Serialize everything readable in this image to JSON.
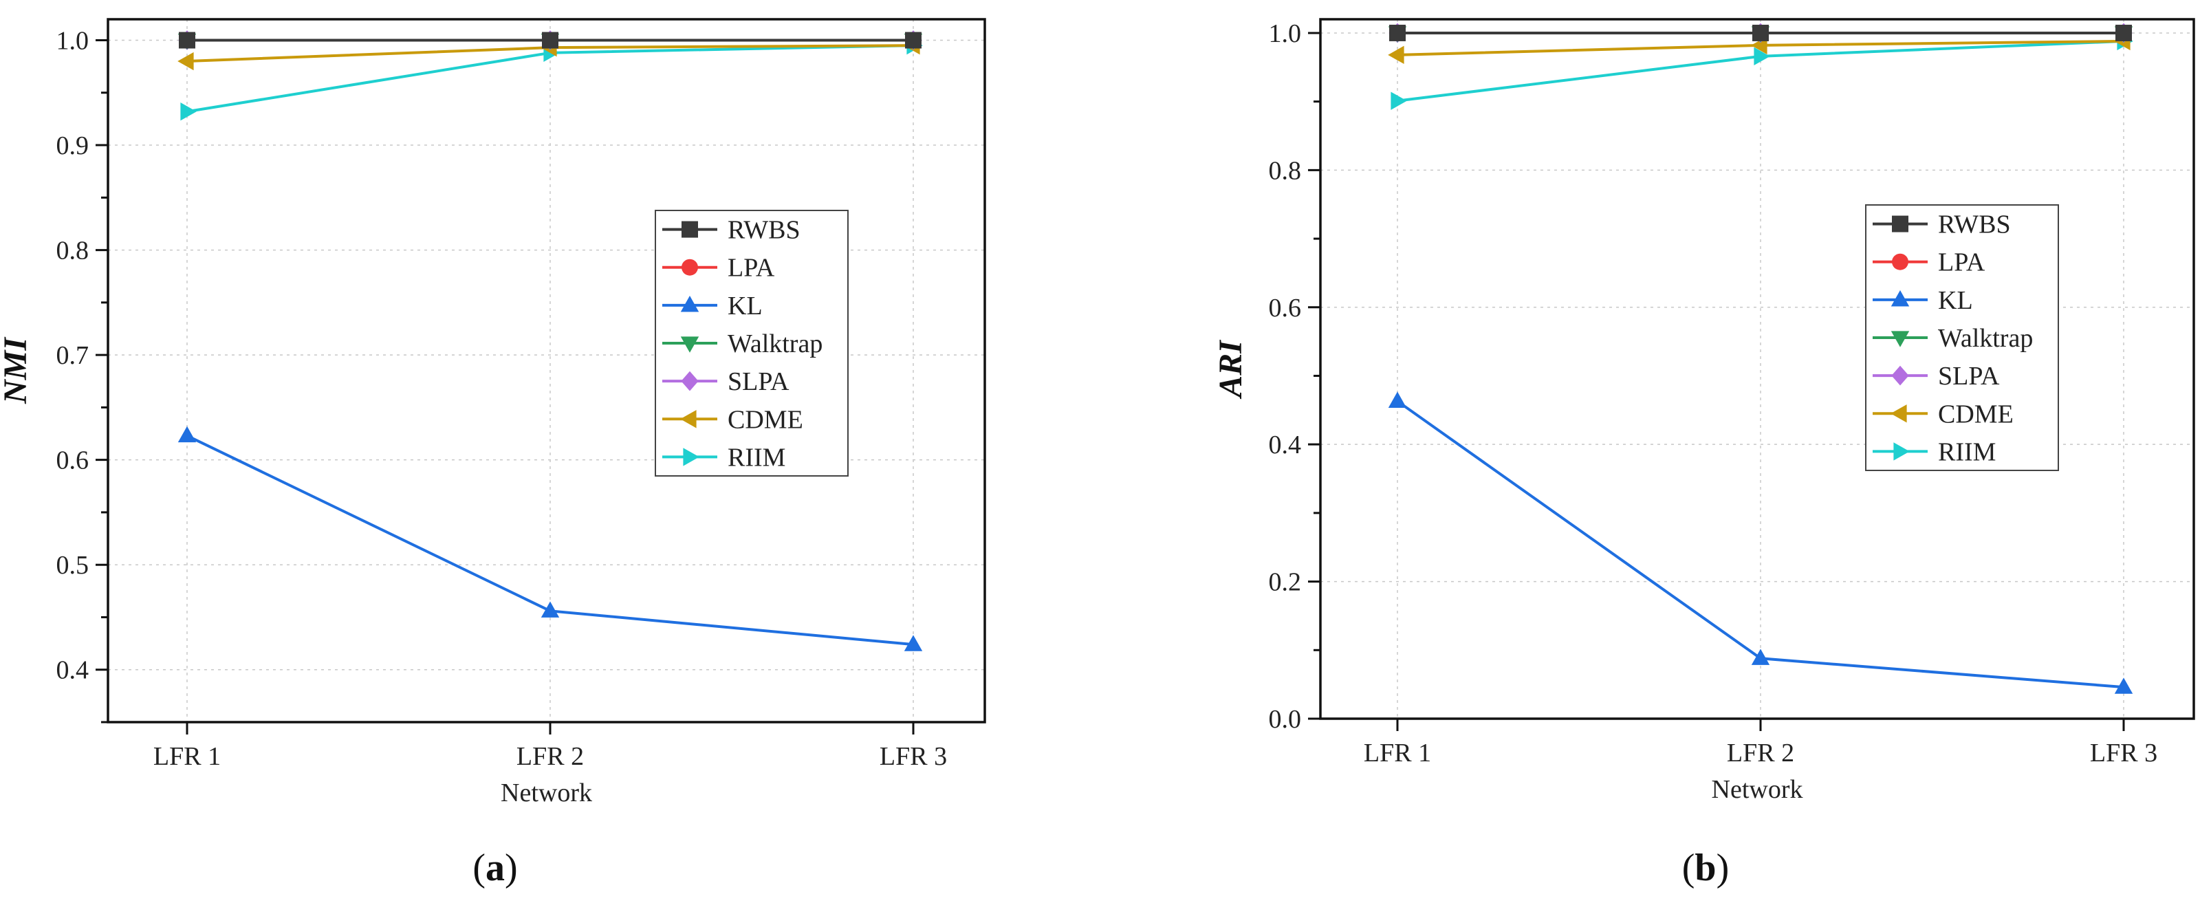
{
  "chart_data": [
    {
      "type": "line",
      "panel": "a",
      "categories": [
        "LFR 1",
        "LFR 2",
        "LFR 3"
      ],
      "xlabel": "Network",
      "ylabel": "NMI",
      "ylim": [
        0.35,
        1.02
      ],
      "yticks": [
        0.4,
        0.5,
        0.6,
        0.7,
        0.8,
        0.9,
        1.0
      ],
      "ytick_labels": [
        "0.4",
        "0.5",
        "0.6",
        "0.7",
        "0.8",
        "0.9",
        "1.0"
      ],
      "grid": true,
      "legend_position": "center-right",
      "series": [
        {
          "name": "RWBS",
          "values": [
            1.0,
            1.0,
            1.0
          ],
          "color": "#3a3a3a",
          "marker": "square"
        },
        {
          "name": "LPA",
          "values": [
            1.0,
            1.0,
            1.0
          ],
          "color": "#f03a3a",
          "marker": "circle"
        },
        {
          "name": "KL",
          "values": [
            0.623,
            0.456,
            0.424
          ],
          "color": "#1f6fe0",
          "marker": "triangle-up"
        },
        {
          "name": "Walktrap",
          "values": [
            1.0,
            1.0,
            1.0
          ],
          "color": "#2ca05a",
          "marker": "triangle-down"
        },
        {
          "name": "SLPA",
          "values": [
            1.0,
            1.0,
            1.0
          ],
          "color": "#b36ee0",
          "marker": "diamond"
        },
        {
          "name": "CDME",
          "values": [
            0.98,
            0.993,
            0.995
          ],
          "color": "#c99a0c",
          "marker": "triangle-left"
        },
        {
          "name": "RIIM",
          "values": [
            0.932,
            0.988,
            0.995
          ],
          "color": "#1ecfcf",
          "marker": "triangle-right"
        }
      ]
    },
    {
      "type": "line",
      "panel": "b",
      "categories": [
        "LFR 1",
        "LFR 2",
        "LFR 3"
      ],
      "xlabel": "Network",
      "ylabel": "ARI",
      "ylim": [
        0.0,
        1.02
      ],
      "yticks": [
        0.0,
        0.2,
        0.4,
        0.6,
        0.8,
        1.0
      ],
      "ytick_labels": [
        "0.0",
        "0.2",
        "0.4",
        "0.6",
        "0.8",
        "1.0"
      ],
      "grid": true,
      "legend_position": "center-right",
      "series": [
        {
          "name": "RWBS",
          "values": [
            1.0,
            1.0,
            1.0
          ],
          "color": "#3a3a3a",
          "marker": "square"
        },
        {
          "name": "LPA",
          "values": [
            1.0,
            1.0,
            1.0
          ],
          "color": "#f03a3a",
          "marker": "circle"
        },
        {
          "name": "KL",
          "values": [
            0.463,
            0.088,
            0.046
          ],
          "color": "#1f6fe0",
          "marker": "triangle-up"
        },
        {
          "name": "Walktrap",
          "values": [
            1.0,
            1.0,
            1.0
          ],
          "color": "#2ca05a",
          "marker": "triangle-down"
        },
        {
          "name": "SLPA",
          "values": [
            1.0,
            1.0,
            1.0
          ],
          "color": "#b36ee0",
          "marker": "diamond"
        },
        {
          "name": "CDME",
          "values": [
            0.968,
            0.982,
            0.988
          ],
          "color": "#c99a0c",
          "marker": "triangle-left"
        },
        {
          "name": "RIIM",
          "values": [
            0.901,
            0.966,
            0.988
          ],
          "color": "#1ecfcf",
          "marker": "triangle-right"
        }
      ]
    }
  ],
  "panel_labels": {
    "a": {
      "open": "(",
      "letter": "a",
      "close": ")"
    },
    "b": {
      "open": "(",
      "letter": "b",
      "close": ")"
    }
  }
}
